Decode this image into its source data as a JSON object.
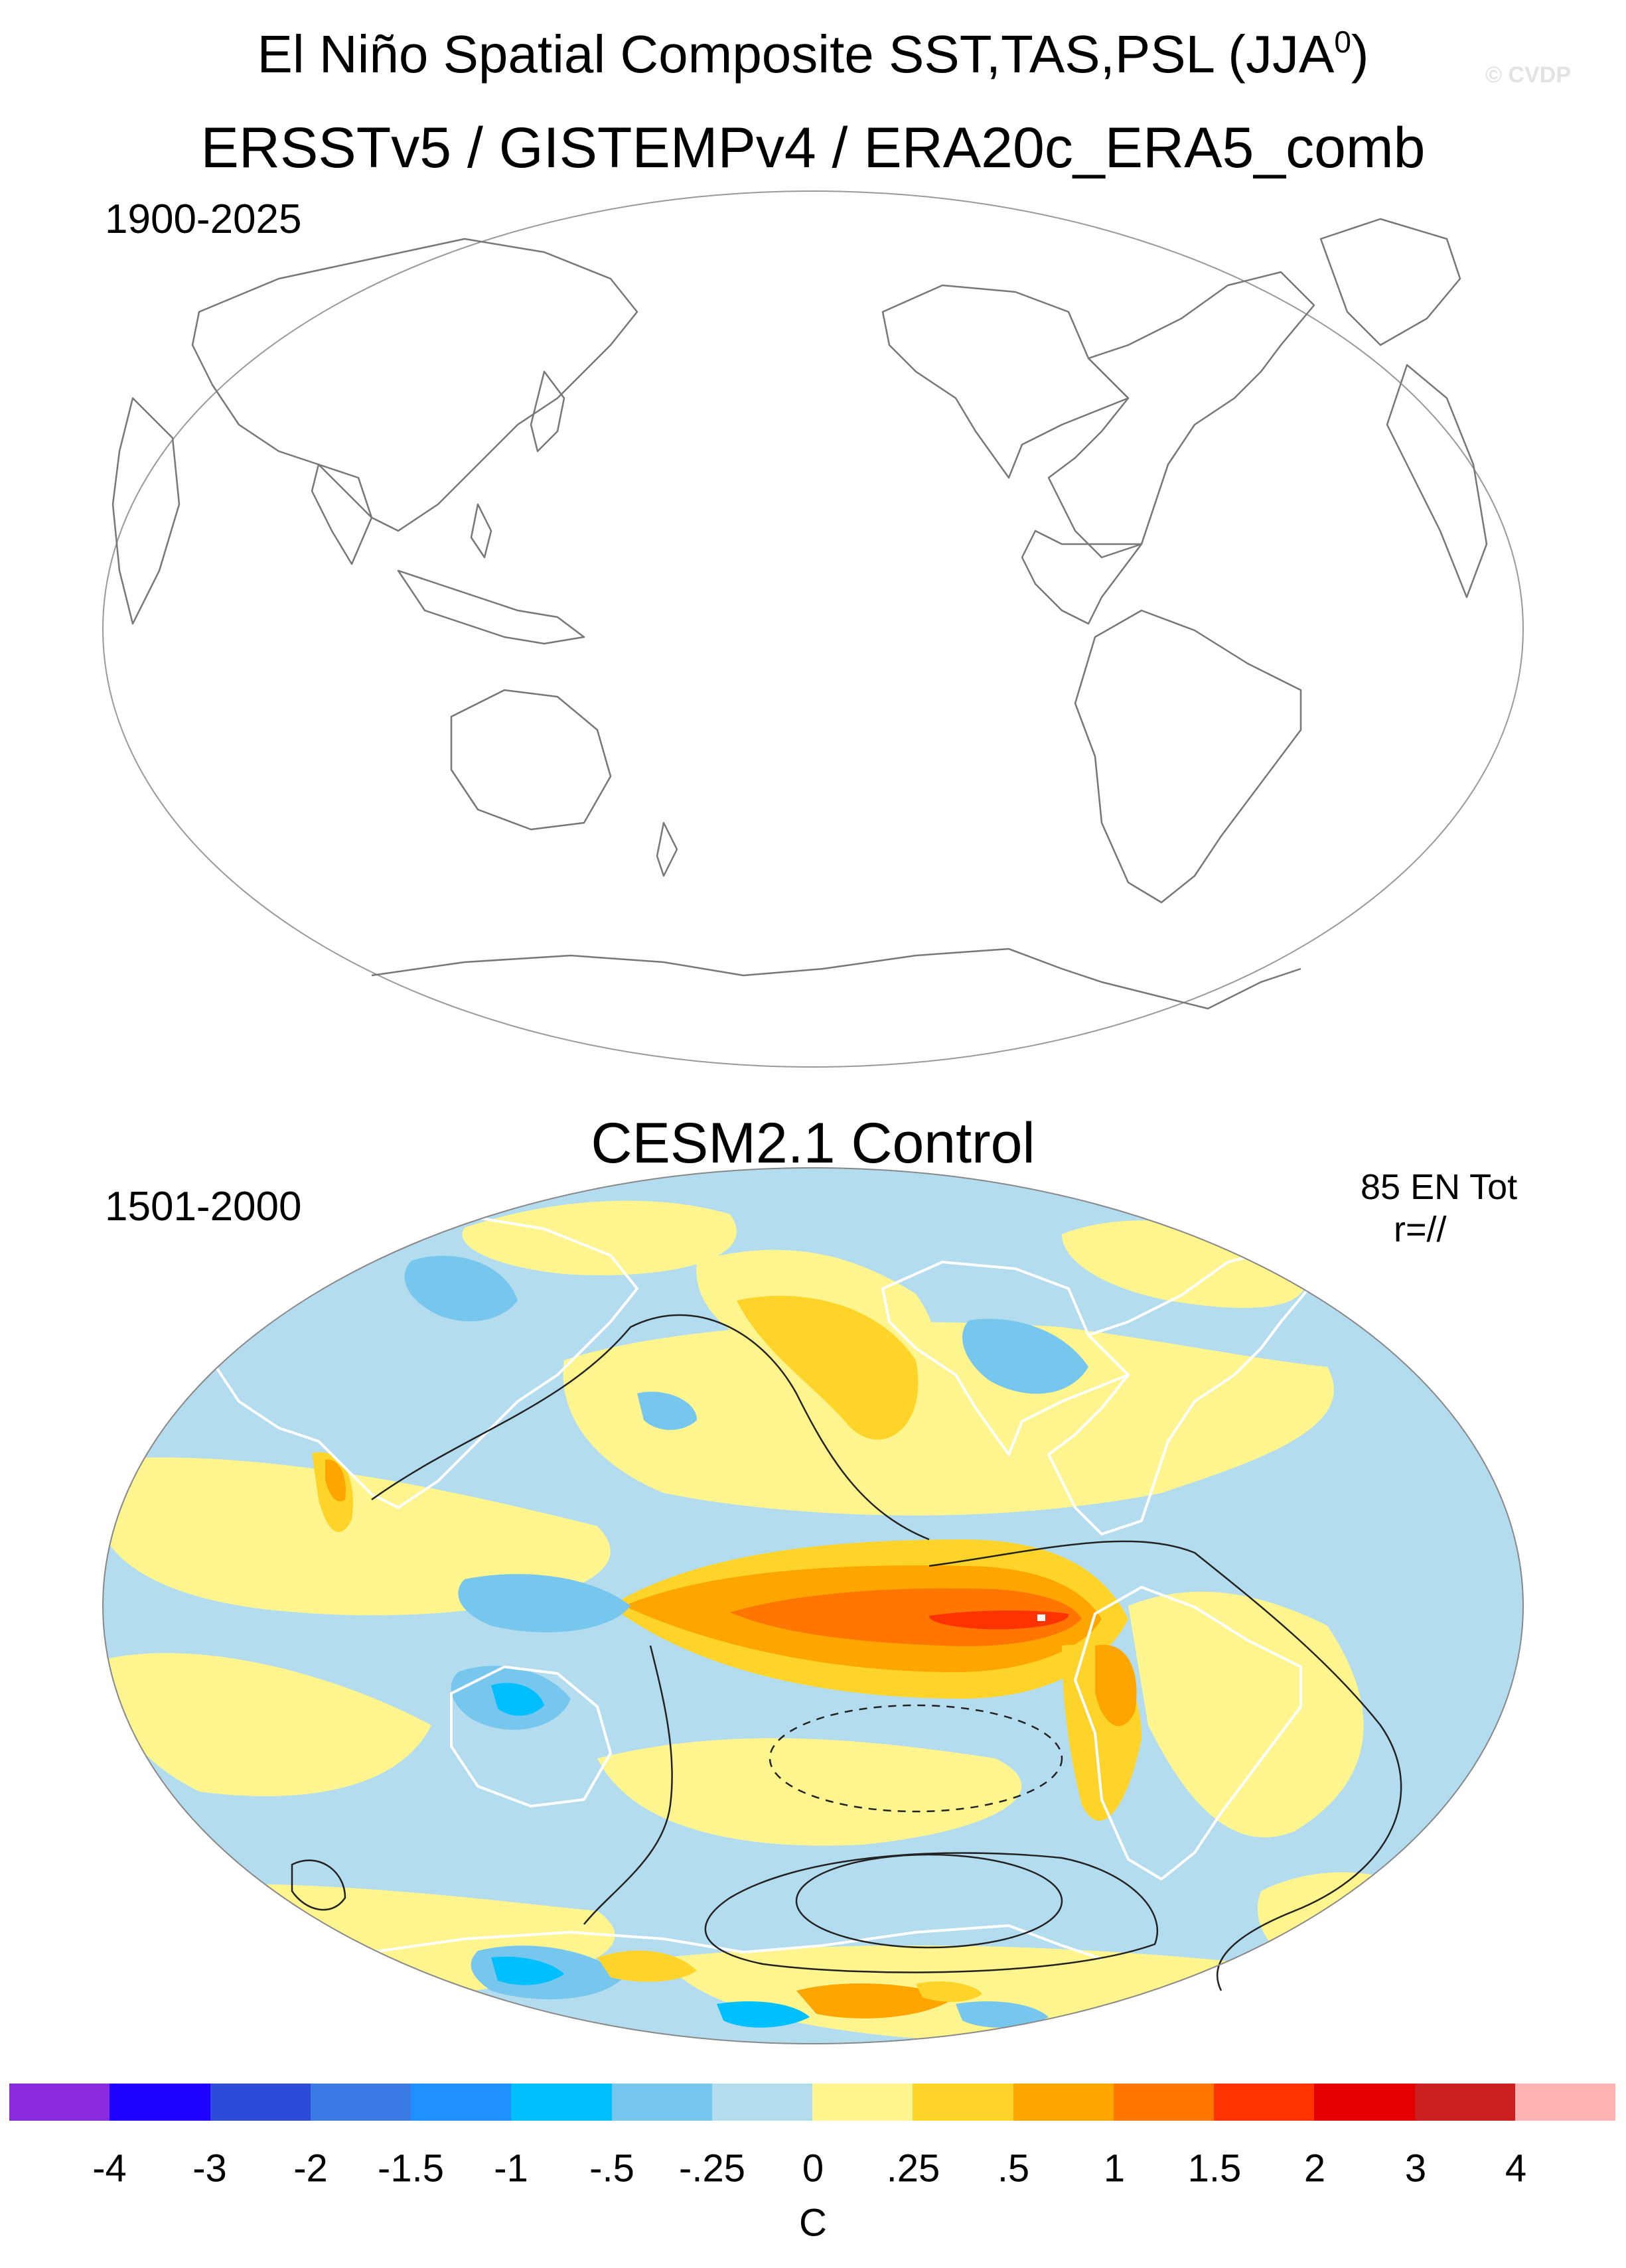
{
  "header": {
    "title_main": "El Niño Spatial Composite SST,TAS,PSL (JJA",
    "title_sup": "0",
    "title_end": ")",
    "copyright": "© CVDP"
  },
  "panel_obs": {
    "title": "ERSSTv5 / GISTEMPv4 / ERA20c_ERA5_comb",
    "period": "1900-2025"
  },
  "panel_model": {
    "title": "CESM2.1 Control",
    "period": "1501-2000",
    "event_count": "85 EN Tot",
    "correlation": "r=//"
  },
  "colorbar": {
    "unit": "C",
    "ticks": [
      "-4",
      "-3",
      "-2",
      "-1.5",
      "-1",
      "-.5",
      "-.25",
      "0",
      ".25",
      ".5",
      "1",
      "1.5",
      "2",
      "3",
      "4"
    ],
    "colors": [
      "#8a2be2",
      "#1e00ff",
      "#2b4bd8",
      "#3a7be6",
      "#1e90ff",
      "#00bfff",
      "#77c6ee",
      "#b4dcef",
      "#fff58f",
      "#ffd42a",
      "#ffa500",
      "#ff7700",
      "#ff3300",
      "#e50000",
      "#cc1f1f",
      "#ffb3b3"
    ]
  },
  "colors": {
    "land_outline": "#777777",
    "map_border": "#888888",
    "psl_contour": "#222222"
  }
}
